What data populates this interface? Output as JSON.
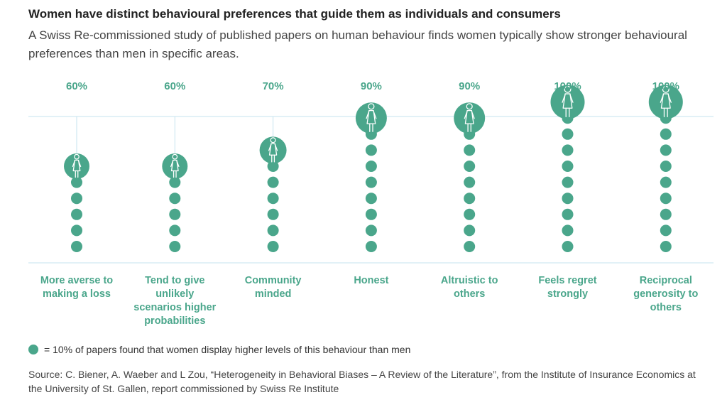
{
  "title": "Women have distinct behavioural preferences that guide them as individuals and consumers",
  "subtitle": "A Swiss Re-commissioned study of published papers on human behaviour finds women typically show stronger behavioural preferences than men in specific areas.",
  "colors": {
    "accent": "#4aa68b",
    "gridline": "#c5e3ef",
    "text": "#333333"
  },
  "chart_data": {
    "type": "dot-column",
    "unit_per_dot": 10,
    "ylim": [
      0,
      100
    ],
    "categories": [
      "More averse to making a loss",
      "Tend to give unlikely scenarios higher probabilities",
      "Community minded",
      "Honest",
      "Altruistic to others",
      "Feels regret strongly",
      "Reciprocal generosity to others"
    ],
    "values": [
      60,
      60,
      70,
      90,
      90,
      100,
      100
    ],
    "value_labels": [
      "60%",
      "60%",
      "70%",
      "90%",
      "90%",
      "100%",
      "100%"
    ],
    "category_label_lines": [
      [
        "More averse to",
        "making a loss"
      ],
      [
        "Tend to give",
        "unlikely",
        "scenarios higher",
        "probabilities"
      ],
      [
        "Community",
        "minded"
      ],
      [
        "Honest"
      ],
      [
        "Altruistic to",
        "others"
      ],
      [
        "Feels regret",
        "strongly"
      ],
      [
        "Reciprocal",
        "generosity to",
        "others"
      ]
    ]
  },
  "legend": {
    "icon": "dot-icon",
    "text": "= 10% of papers found that women display higher levels of this behaviour than men"
  },
  "source": "Source: C. Biener, A. Waeber and L Zou, “Heterogeneity in Behavioral Biases – A Review of the Literature”, from the Institute of Insurance Economics at the University of St. Gallen, report commissioned by Swiss Re Institute"
}
